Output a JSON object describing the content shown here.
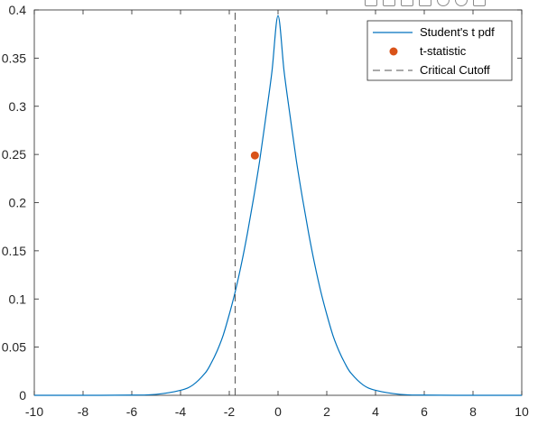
{
  "toolbar": {
    "icons": [
      "export-icon",
      "brush-icon",
      "select-icon",
      "pan-icon",
      "zoom-in-icon",
      "zoom-out-icon",
      "home-icon"
    ]
  },
  "chart_data": {
    "type": "line",
    "title": "",
    "xlabel": "",
    "ylabel": "",
    "xlim": [
      -10,
      10
    ],
    "ylim": [
      0,
      0.4
    ],
    "x_ticks": [
      -10,
      -8,
      -6,
      -4,
      -2,
      0,
      2,
      4,
      6,
      8,
      10
    ],
    "y_ticks": [
      0,
      0.05,
      0.1,
      0.15,
      0.2,
      0.25,
      0.3,
      0.35,
      0.4
    ],
    "x_tick_labels": [
      "-10",
      "-8",
      "-6",
      "-4",
      "-2",
      "0",
      "2",
      "4",
      "6",
      "8",
      "10"
    ],
    "y_tick_labels": [
      "0",
      "0.05",
      "0.1",
      "0.15",
      "0.2",
      "0.25",
      "0.3",
      "0.35",
      "0.4"
    ],
    "grid": false,
    "legend_position": "top-right",
    "series": [
      {
        "name": "Student's t pdf",
        "style": "solid-line",
        "color": "#0072BD",
        "x": [
          -10,
          -8,
          -6,
          -5,
          -4,
          -3.5,
          -3,
          -2.75,
          -2.5,
          -2.25,
          -2,
          -1.75,
          -1.5,
          -1.25,
          -1,
          -0.75,
          -0.5,
          -0.25,
          0,
          0.25,
          0.5,
          0.75,
          1,
          1.25,
          1.5,
          1.75,
          2,
          2.25,
          2.5,
          2.75,
          3,
          3.5,
          4,
          5,
          6,
          8,
          10
        ],
        "y": [
          0.0,
          0.0,
          0.0002,
          0.001,
          0.0052,
          0.0106,
          0.0228,
          0.033,
          0.046,
          0.0624,
          0.084,
          0.1082,
          0.1366,
          0.169,
          0.205,
          0.244,
          0.289,
          0.336,
          0.394,
          0.336,
          0.289,
          0.244,
          0.205,
          0.169,
          0.1366,
          0.1082,
          0.084,
          0.0624,
          0.046,
          0.033,
          0.0228,
          0.0106,
          0.0052,
          0.001,
          0.0002,
          0.0,
          0.0
        ]
      },
      {
        "name": "t-statistic",
        "style": "marker",
        "color": "#D95319",
        "x": [
          -0.95
        ],
        "y": [
          0.249
        ]
      },
      {
        "name": "Critical Cutoff",
        "style": "dashed-line",
        "color": "#555555",
        "x": [
          -1.76,
          -1.76
        ],
        "y": [
          0,
          0.4
        ]
      }
    ]
  }
}
